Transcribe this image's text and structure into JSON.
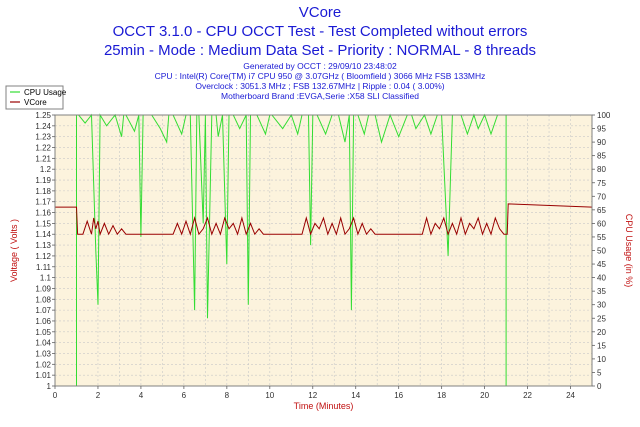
{
  "header": {
    "title": "VCore",
    "line1": "OCCT 3.1.0 - CPU OCCT Test - Test Completed without errors",
    "line2": "25min - Mode : Medium Data Set - Priority : NORMAL - 8 threads",
    "info": [
      "Generated by OCCT : 29/09/10 23:48:02",
      "CPU : Intel(R) Core(TM) i7 CPU 950 @ 3.07GHz ( Bloomfield ) 3066 MHz FSB 133MHz",
      "Overclock : 3051.3 MHz ; FSB 132.67MHz | Ripple : 0.04 ( 3.00%)",
      "Motherboard Brand :EVGA,Serie :X58 SLI Classified"
    ]
  },
  "colors": {
    "background": "#ffffff",
    "plot_background": "#fcf3dd",
    "grid": "#c8c8c8",
    "title": "#1a1ad4",
    "axis_label": "#c01010",
    "cpu_usage": "#33dd33",
    "vcore": "#990000"
  },
  "chart_data": {
    "type": "line",
    "title": "VCore",
    "xlabel": "Time (Minutes)",
    "ylabel_left": "Voltage ( Volts )",
    "ylabel_right": "CPU Usage (in %)",
    "xlim": [
      0,
      25
    ],
    "ylim_left": [
      1.0,
      1.25
    ],
    "ylim_right": [
      0,
      100
    ],
    "x_ticks": [
      0,
      2,
      4,
      6,
      8,
      10,
      12,
      14,
      16,
      18,
      20,
      22,
      24
    ],
    "y_ticks_left": [
      "1",
      "1.01",
      "1.02",
      "1.03",
      "1.04",
      "1.05",
      "1.06",
      "1.07",
      "1.08",
      "1.09",
      "1.1",
      "1.11",
      "1.12",
      "1.13",
      "1.14",
      "1.15",
      "1.16",
      "1.17",
      "1.18",
      "1.19",
      "1.2",
      "1.21",
      "1.22",
      "1.23",
      "1.24",
      "1.25"
    ],
    "y_ticks_right": [
      "0",
      "5",
      "10",
      "15",
      "20",
      "25",
      "30",
      "35",
      "40",
      "45",
      "50",
      "55",
      "60",
      "65",
      "70",
      "75",
      "80",
      "85",
      "90",
      "95",
      "100"
    ],
    "grid": true,
    "legend_position": "top-left",
    "legend": [
      "CPU Usage",
      "VCore"
    ],
    "series": [
      {
        "name": "CPU Usage",
        "axis": "right",
        "x": [
          0,
          1.0,
          1.0,
          1.1,
          1.4,
          1.7,
          1.9,
          2.0,
          2.1,
          2.4,
          2.8,
          3.1,
          3.2,
          3.3,
          3.7,
          3.9,
          4.0,
          4.1,
          4.5,
          4.9,
          5.2,
          5.3,
          5.5,
          5.9,
          6.1,
          6.3,
          6.5,
          6.6,
          6.7,
          6.9,
          7.0,
          7.1,
          7.3,
          7.5,
          7.6,
          7.8,
          8.0,
          8.1,
          8.3,
          8.6,
          8.9,
          9.0,
          9.1,
          9.4,
          9.8,
          10.0,
          10.1,
          10.6,
          11.0,
          11.3,
          11.5,
          11.8,
          11.9,
          12.0,
          12.2,
          12.6,
          12.9,
          13.2,
          13.5,
          13.7,
          13.8,
          13.9,
          14.1,
          14.4,
          14.6,
          14.9,
          15.2,
          15.6,
          16.0,
          16.4,
          16.6,
          16.8,
          17.2,
          17.5,
          17.8,
          18.0,
          18.3,
          18.5,
          18.9,
          19.2,
          19.5,
          19.7,
          20.0,
          20.3,
          20.6,
          20.8,
          21.0,
          21.0,
          21.1,
          25
        ],
        "values": [
          0,
          0,
          100,
          100,
          97,
          100,
          50,
          30,
          100,
          96,
          100,
          92,
          100,
          100,
          94,
          100,
          55,
          100,
          100,
          95,
          90,
          100,
          100,
          93,
          100,
          100,
          28,
          100,
          100,
          60,
          100,
          25,
          100,
          100,
          92,
          100,
          45,
          100,
          100,
          95,
          100,
          30,
          100,
          100,
          93,
          100,
          100,
          95,
          100,
          93,
          100,
          100,
          52,
          100,
          100,
          93,
          100,
          100,
          90,
          100,
          28,
          100,
          100,
          93,
          100,
          100,
          90,
          100,
          92,
          100,
          100,
          95,
          100,
          93,
          100,
          100,
          48,
          100,
          100,
          93,
          100,
          95,
          100,
          93,
          100,
          100,
          100,
          0,
          0,
          0
        ]
      },
      {
        "name": "VCore",
        "axis": "left",
        "x": [
          0,
          1.0,
          1.05,
          1.3,
          1.5,
          1.7,
          1.8,
          1.9,
          2.0,
          2.1,
          2.3,
          2.5,
          2.7,
          2.9,
          3.1,
          3.3,
          3.5,
          5.5,
          5.7,
          5.9,
          6.1,
          6.3,
          6.5,
          6.7,
          6.9,
          7.1,
          7.3,
          7.5,
          7.7,
          7.9,
          8.1,
          8.3,
          8.5,
          8.7,
          8.9,
          9.1,
          9.3,
          9.5,
          9.7,
          9.9,
          10.1,
          10.3,
          11.5,
          11.7,
          11.9,
          12.1,
          12.3,
          12.5,
          12.7,
          12.9,
          13.1,
          13.3,
          13.5,
          13.7,
          13.9,
          14.1,
          14.3,
          14.5,
          14.7,
          14.9,
          15.1,
          15.3,
          17.1,
          17.3,
          17.5,
          17.7,
          17.9,
          18.1,
          18.3,
          18.5,
          18.7,
          18.9,
          19.1,
          19.3,
          19.5,
          19.7,
          19.9,
          20.1,
          20.3,
          20.5,
          20.7,
          20.9,
          21.05,
          21.1,
          25
        ],
        "values": [
          1.165,
          1.165,
          1.14,
          1.14,
          1.152,
          1.14,
          1.155,
          1.145,
          1.152,
          1.14,
          1.15,
          1.14,
          1.148,
          1.14,
          1.145,
          1.14,
          1.14,
          1.14,
          1.15,
          1.14,
          1.152,
          1.14,
          1.155,
          1.14,
          1.145,
          1.155,
          1.14,
          1.15,
          1.14,
          1.155,
          1.145,
          1.15,
          1.14,
          1.155,
          1.14,
          1.15,
          1.14,
          1.145,
          1.14,
          1.14,
          1.14,
          1.14,
          1.14,
          1.155,
          1.14,
          1.15,
          1.145,
          1.155,
          1.14,
          1.15,
          1.14,
          1.155,
          1.14,
          1.145,
          1.155,
          1.14,
          1.15,
          1.14,
          1.145,
          1.14,
          1.14,
          1.14,
          1.14,
          1.155,
          1.14,
          1.15,
          1.145,
          1.155,
          1.14,
          1.15,
          1.14,
          1.155,
          1.14,
          1.15,
          1.145,
          1.155,
          1.14,
          1.15,
          1.14,
          1.155,
          1.145,
          1.14,
          1.14,
          1.168,
          1.165
        ]
      }
    ]
  }
}
